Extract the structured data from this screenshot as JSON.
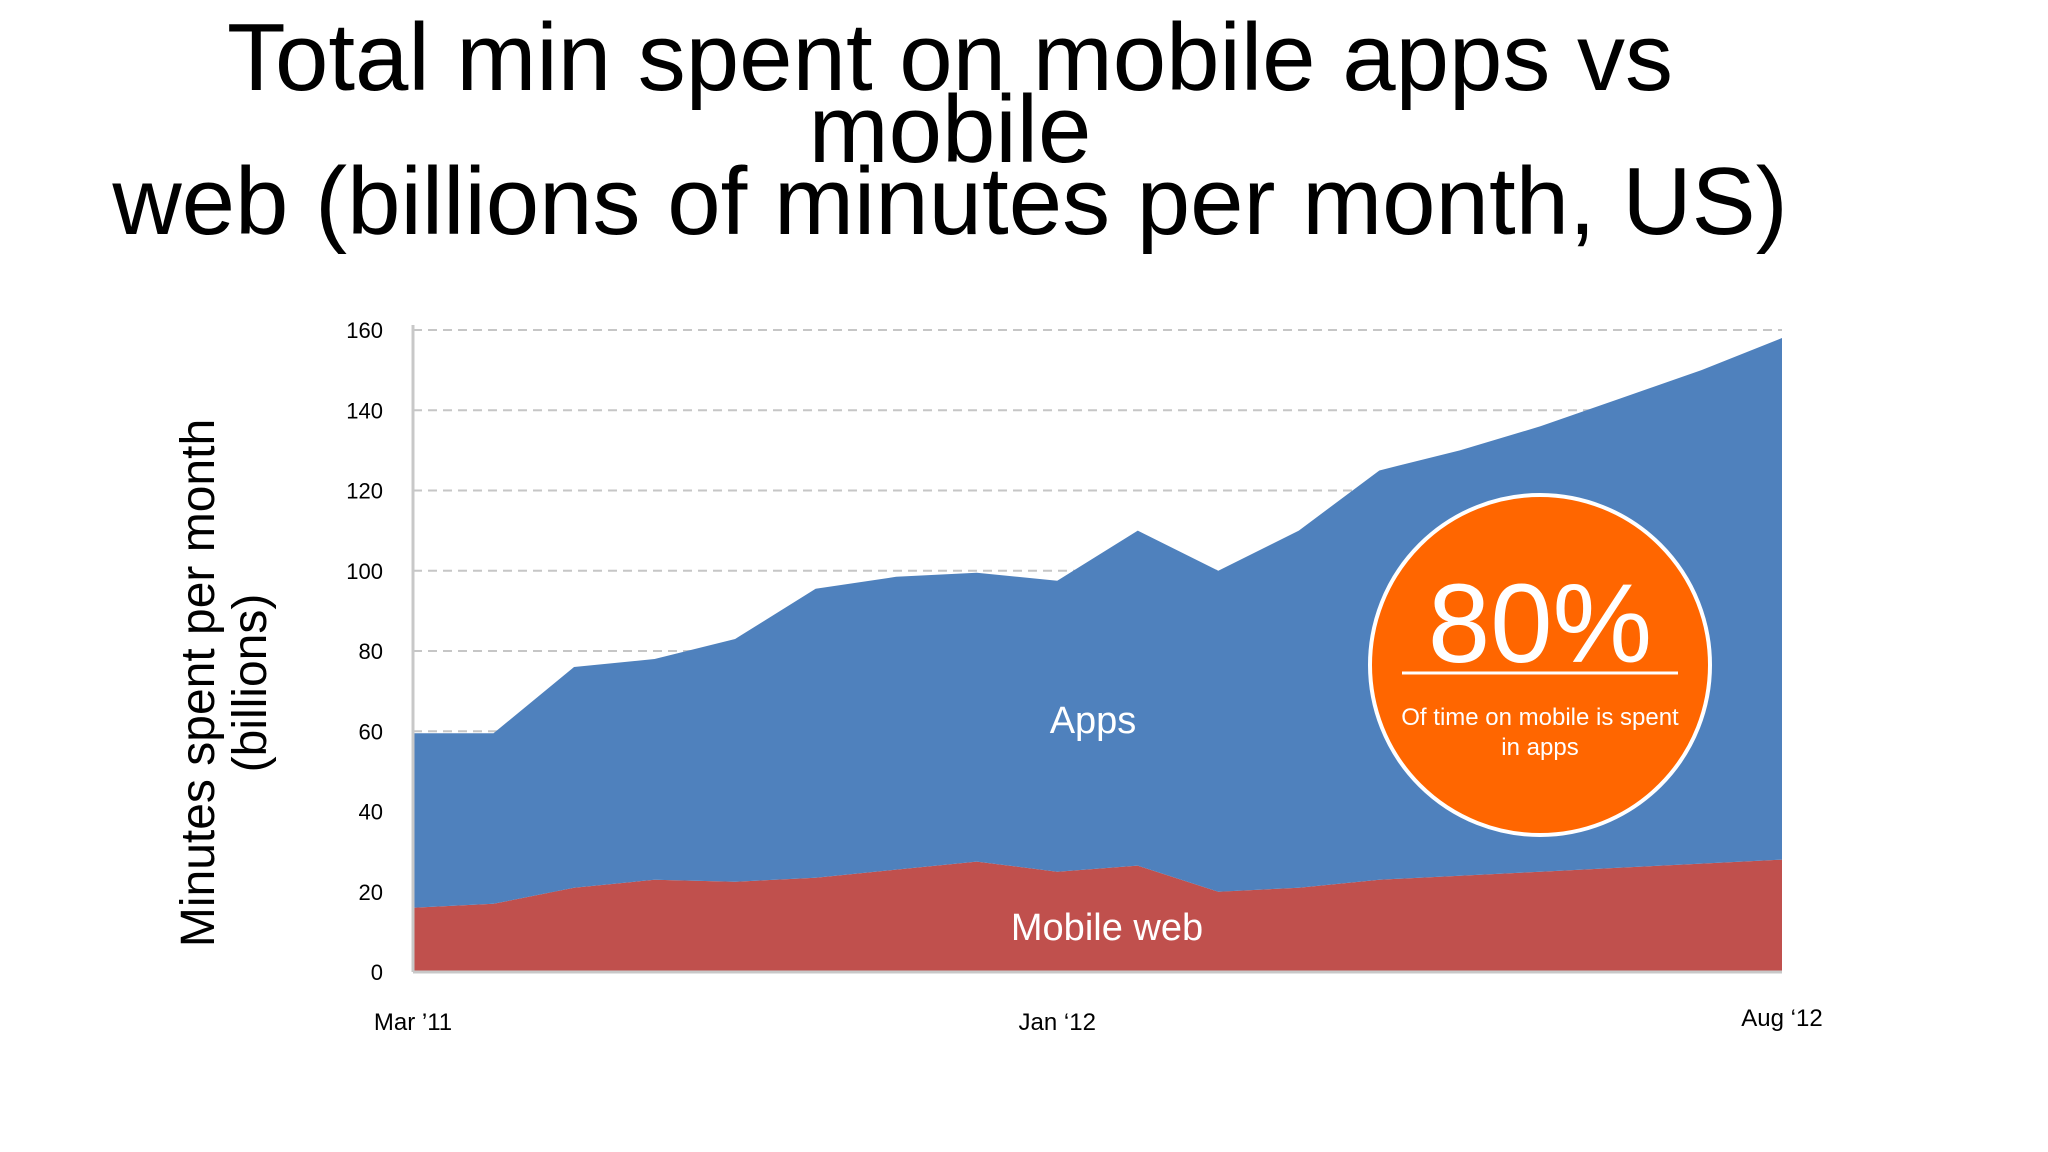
{
  "title": {
    "line1": "Total min spent on mobile apps vs mobile",
    "line2": "web (billions of minutes per month, US)"
  },
  "chart_data": {
    "type": "area",
    "stacked": true,
    "ylabel_line1": "Minutes spent per month",
    "ylabel_line2": "(billions)",
    "ylim": [
      0,
      160
    ],
    "yticks": [
      0,
      20,
      40,
      60,
      80,
      100,
      120,
      140,
      160
    ],
    "grid": true,
    "x_tick_labels": [
      "Mar ’11",
      "Jan ‘12",
      "Aug ‘12"
    ],
    "x_tick_index": [
      0,
      8,
      17
    ],
    "series": [
      {
        "name": "Mobile web",
        "color": "#c0504d",
        "values": [
          16,
          17,
          21,
          23,
          22.5,
          23.5,
          25.5,
          27.5,
          25,
          26.5,
          20,
          21,
          23,
          24,
          25,
          26,
          27,
          28
        ]
      },
      {
        "name": "Apps",
        "color": "#4f81bd",
        "values": [
          43.5,
          42.5,
          55,
          55,
          60.5,
          72,
          73,
          72,
          72.5,
          83.5,
          80,
          89,
          102,
          106,
          111,
          117,
          123,
          130
        ]
      }
    ],
    "callout": {
      "value": "80%",
      "caption_line1": "Of time on mobile is spent",
      "caption_line2": "in apps",
      "color": "#ff6600"
    }
  }
}
